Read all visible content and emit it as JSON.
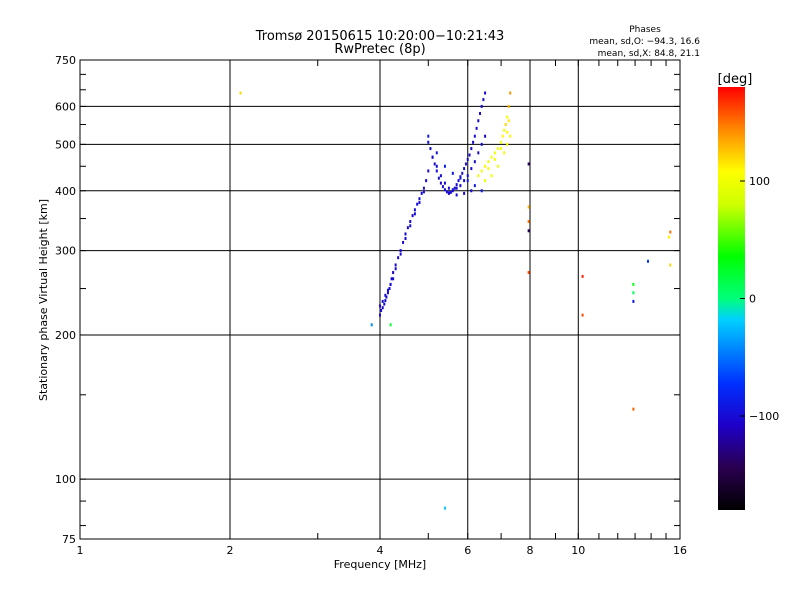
{
  "chart_data": {
    "type": "scatter",
    "title": "Tromsø 20150615 10:20:00−10:21:43",
    "subtitle": "RwPretec (8p)",
    "xlabel": "Frequency [MHz]",
    "ylabel": "Stationary phase Virtual Height [km]",
    "x_scale": "log",
    "y_scale": "log",
    "xlim": [
      1,
      16
    ],
    "ylim": [
      75,
      750
    ],
    "x_ticks": [
      1,
      2,
      4,
      6,
      8,
      10,
      16
    ],
    "x_tick_labels": [
      "1",
      "2",
      "4",
      "6",
      "8",
      "10",
      "16"
    ],
    "y_ticks": [
      75,
      100,
      200,
      300,
      400,
      500,
      600,
      750
    ],
    "y_tick_labels": [
      "75",
      "100",
      "200",
      "300",
      "400",
      "500",
      "600",
      "750"
    ],
    "grid": true,
    "colorbar": {
      "label": "[deg]",
      "range": [
        -180,
        180
      ],
      "ticks": [
        100,
        0,
        -100
      ],
      "tick_labels": [
        "100",
        "0",
        "−100"
      ]
    },
    "stats": {
      "heading": "Phases",
      "line_o": "mean, sd,O: −94.3, 16.6",
      "line_x": "mean, sd,X:  84.8, 21.1"
    },
    "series": [
      {
        "x": [
          4.0,
          4.02,
          4.05,
          4.08,
          4.1,
          4.12,
          4.15,
          4.18,
          4.2,
          4.22,
          4.25,
          4.3,
          4.35,
          4.4,
          4.45,
          4.5,
          4.55,
          4.6,
          4.65,
          4.7,
          4.75,
          4.8,
          4.85,
          4.9,
          4.95,
          5.0,
          4.0,
          4.05,
          4.1,
          4.15,
          4.2,
          4.25,
          4.3,
          4.4,
          4.5,
          4.6,
          4.7,
          4.8,
          4.9
        ],
        "y": [
          220,
          225,
          228,
          232,
          236,
          240,
          245,
          250,
          255,
          262,
          270,
          280,
          290,
          300,
          312,
          325,
          335,
          345,
          355,
          365,
          375,
          385,
          395,
          405,
          420,
          440,
          230,
          235,
          242,
          248,
          255,
          262,
          275,
          295,
          318,
          338,
          358,
          378,
          398
        ],
        "phase": [
          -100,
          -100,
          -105,
          -100,
          -98,
          -102,
          -100,
          -100,
          -95,
          -100,
          -105,
          -100,
          -100,
          -98,
          -100,
          -102,
          -100,
          -100,
          -104,
          -100,
          -100,
          -98,
          -100,
          -100,
          -102,
          -100,
          -102,
          -100,
          -100,
          -100,
          -100,
          -100,
          -100,
          -100,
          -100,
          -100,
          -100,
          -100,
          -100
        ]
      },
      {
        "x": [
          5.0,
          5.05,
          5.1,
          5.15,
          5.2,
          5.25,
          5.3,
          5.35,
          5.4,
          5.45,
          5.5,
          5.55,
          5.6,
          5.65,
          5.7,
          5.75,
          5.8,
          5.85,
          5.9,
          5.95,
          6.0,
          6.05,
          6.1,
          6.15,
          6.2,
          6.25,
          6.3,
          6.35,
          6.4,
          6.45,
          6.5,
          5.1,
          5.2,
          5.3,
          5.4,
          5.5,
          5.6,
          5.7,
          5.8,
          5.9,
          6.0,
          6.1,
          6.2,
          6.3,
          6.4,
          6.5,
          5.0,
          5.2,
          5.4,
          5.6,
          5.8,
          6.0,
          6.2,
          6.4,
          5.5,
          5.7,
          5.9,
          6.1
        ],
        "y": [
          505,
          490,
          470,
          455,
          440,
          425,
          415,
          408,
          402,
          398,
          396,
          397,
          400,
          405,
          412,
          420,
          428,
          435,
          445,
          455,
          465,
          475,
          490,
          505,
          520,
          540,
          560,
          580,
          600,
          620,
          640,
          470,
          450,
          430,
          415,
          405,
          402,
          405,
          410,
          420,
          430,
          445,
          460,
          480,
          500,
          520,
          520,
          480,
          450,
          435,
          425,
          420,
          410,
          400,
          395,
          392,
          395,
          400
        ],
        "phase": [
          -100,
          -100,
          -102,
          -100,
          -98,
          -100,
          -105,
          -100,
          -100,
          -100,
          -100,
          -102,
          -100,
          -100,
          -100,
          -100,
          -100,
          -98,
          -100,
          -100,
          -100,
          -100,
          -100,
          -102,
          -100,
          -100,
          -100,
          -100,
          -100,
          -100,
          -100,
          -100,
          -100,
          -100,
          -100,
          -100,
          -100,
          -100,
          -100,
          -100,
          -100,
          -100,
          -100,
          -100,
          -100,
          -100,
          -90,
          -90,
          -90,
          -90,
          -90,
          -90,
          -90,
          -90,
          -100,
          -100,
          -100,
          -100
        ]
      },
      {
        "x": [
          6.3,
          6.4,
          6.5,
          6.6,
          6.7,
          6.8,
          6.9,
          7.0,
          7.05,
          7.1,
          7.15,
          7.2,
          7.25,
          7.3,
          6.5,
          6.7,
          6.9,
          7.1,
          7.2,
          7.3,
          6.6,
          6.8,
          7.0,
          7.2,
          7.25
        ],
        "y": [
          430,
          440,
          450,
          460,
          470,
          480,
          490,
          505,
          520,
          535,
          550,
          570,
          600,
          640,
          420,
          430,
          450,
          480,
          500,
          520,
          445,
          465,
          490,
          530,
          560
        ],
        "phase": [
          100,
          100,
          110,
          100,
          105,
          100,
          100,
          105,
          110,
          100,
          120,
          100,
          130,
          140,
          95,
          100,
          100,
          100,
          105,
          110,
          100,
          100,
          105,
          110,
          115
        ]
      },
      {
        "x": [
          2.1,
          3.85,
          4.2,
          5.4,
          7.95,
          7.95,
          7.95,
          7.95,
          7.95,
          10.2,
          10.2,
          12.9,
          12.9,
          12.9,
          12.9,
          13.8,
          15.3,
          15.3,
          15.2
        ],
        "y": [
          640,
          210,
          210,
          87,
          455,
          330,
          370,
          345,
          270,
          265,
          220,
          255,
          235,
          245,
          140,
          285,
          328,
          280,
          320
        ],
        "phase": [
          120,
          -40,
          20,
          -20,
          -140,
          -140,
          130,
          150,
          160,
          170,
          160,
          30,
          -90,
          10,
          155,
          -70,
          150,
          120,
          110
        ]
      }
    ]
  }
}
